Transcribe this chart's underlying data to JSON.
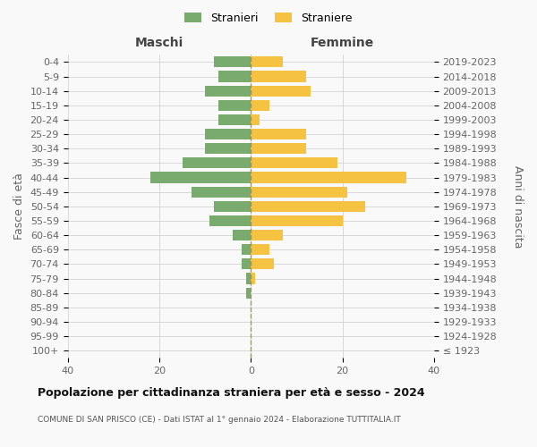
{
  "age_groups": [
    "100+",
    "95-99",
    "90-94",
    "85-89",
    "80-84",
    "75-79",
    "70-74",
    "65-69",
    "60-64",
    "55-59",
    "50-54",
    "45-49",
    "40-44",
    "35-39",
    "30-34",
    "25-29",
    "20-24",
    "15-19",
    "10-14",
    "5-9",
    "0-4"
  ],
  "birth_years": [
    "≤ 1923",
    "1924-1928",
    "1929-1933",
    "1934-1938",
    "1939-1943",
    "1944-1948",
    "1949-1953",
    "1954-1958",
    "1959-1963",
    "1964-1968",
    "1969-1973",
    "1974-1978",
    "1979-1983",
    "1984-1988",
    "1989-1993",
    "1994-1998",
    "1999-2003",
    "2004-2008",
    "2009-2013",
    "2014-2018",
    "2019-2023"
  ],
  "males": [
    0,
    0,
    0,
    0,
    1,
    1,
    2,
    2,
    4,
    9,
    8,
    13,
    22,
    15,
    10,
    10,
    7,
    7,
    10,
    7,
    8
  ],
  "females": [
    0,
    0,
    0,
    0,
    0,
    1,
    5,
    4,
    7,
    20,
    25,
    21,
    34,
    19,
    12,
    12,
    2,
    4,
    13,
    12,
    7
  ],
  "male_color": "#7aab6e",
  "female_color": "#f5c242",
  "bg_color": "#f9f9f9",
  "center_line_color": "#888855",
  "grid_color": "#cccccc",
  "title": "Popolazione per cittadinanza straniera per età e sesso - 2024",
  "subtitle": "COMUNE DI SAN PRISCO (CE) - Dati ISTAT al 1° gennaio 2024 - Elaborazione TUTTITALIA.IT",
  "label_maschi": "Maschi",
  "label_femmine": "Femmine",
  "ylabel_left": "Fasce di età",
  "ylabel_right": "Anni di nascita",
  "legend_male": "Stranieri",
  "legend_female": "Straniere",
  "xlim": 40,
  "bar_height": 0.75
}
